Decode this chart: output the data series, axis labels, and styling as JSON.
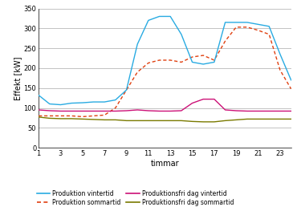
{
  "hours": [
    1,
    2,
    3,
    4,
    5,
    6,
    7,
    8,
    9,
    10,
    11,
    12,
    13,
    14,
    15,
    16,
    17,
    18,
    19,
    20,
    21,
    22,
    23,
    24
  ],
  "produktion_vintertid": [
    132,
    110,
    108,
    112,
    113,
    115,
    115,
    120,
    145,
    260,
    320,
    330,
    330,
    285,
    215,
    210,
    215,
    315,
    315,
    315,
    310,
    305,
    235,
    170
  ],
  "produktion_sommartid": [
    80,
    80,
    80,
    80,
    78,
    80,
    82,
    100,
    145,
    190,
    213,
    220,
    220,
    215,
    228,
    232,
    220,
    268,
    303,
    303,
    295,
    285,
    195,
    148
  ],
  "produktionsfri_vintertid": [
    95,
    93,
    92,
    92,
    92,
    92,
    92,
    92,
    93,
    95,
    93,
    92,
    92,
    93,
    112,
    122,
    122,
    95,
    93,
    92,
    92,
    92,
    92,
    92
  ],
  "produktionsfri_sommartid": [
    77,
    74,
    73,
    73,
    72,
    71,
    70,
    70,
    68,
    68,
    68,
    68,
    68,
    68,
    66,
    65,
    65,
    68,
    70,
    72,
    72,
    72,
    72,
    72
  ],
  "color_vintertid": "#29ABE2",
  "color_sommartid": "#E04010",
  "color_pfri_vinter": "#CC1177",
  "color_pfri_sommar": "#7A7A00",
  "xlabel": "timmar",
  "ylabel": "Effekt [kW]",
  "ylim": [
    0,
    350
  ],
  "yticks": [
    0,
    50,
    100,
    150,
    200,
    250,
    300,
    350
  ],
  "xticks": [
    1,
    3,
    5,
    7,
    9,
    11,
    13,
    15,
    17,
    19,
    21,
    23
  ],
  "legend_labels": [
    "Produktion vintertid",
    "Produktion sommartid",
    "Produktionsfri dag vintertid",
    "Produktionsfri dag sommartid"
  ]
}
